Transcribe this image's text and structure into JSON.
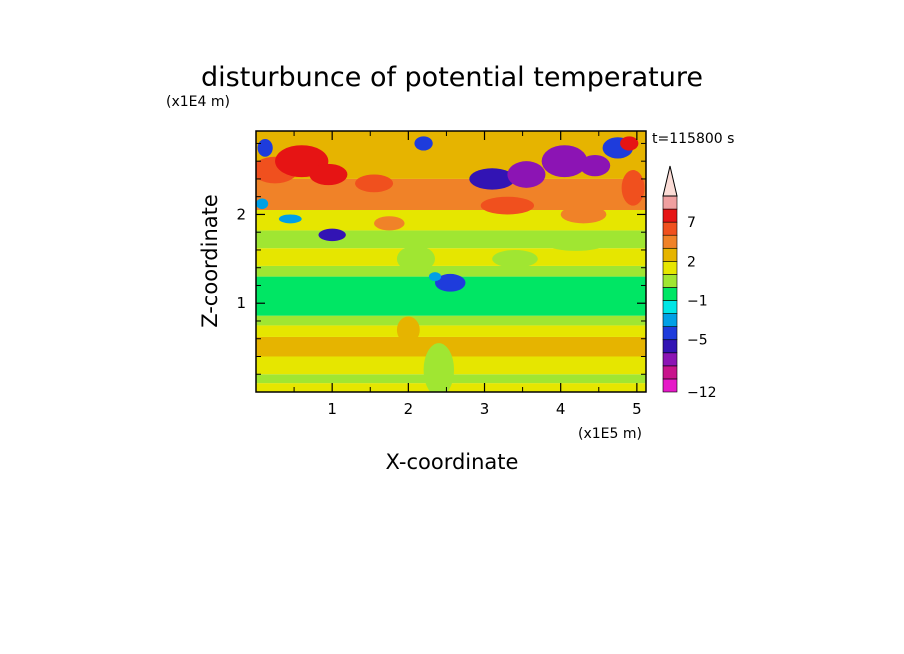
{
  "chart_data": {
    "type": "heatmap",
    "title": "disturbunce of potential temperature",
    "xlabel": "X-coordinate",
    "ylabel": "Z-coordinate",
    "x_unit": "(x1E5 m)",
    "y_unit": "(x1E4 m)",
    "time_label": "t=115800 s",
    "xlim": [
      0,
      5.12
    ],
    "ylim": [
      0,
      2.94
    ],
    "x_ticks": [
      1,
      2,
      3,
      4,
      5
    ],
    "y_ticks": [
      1,
      2
    ],
    "x_tick_labels": [
      "1",
      "2",
      "3",
      "4",
      "5"
    ],
    "y_tick_labels": [
      "1",
      "2"
    ],
    "colorbar": {
      "levels": [
        -12,
        -10,
        -8,
        -6.5,
        -5,
        -3.5,
        -2,
        -1,
        0,
        1,
        2,
        3.5,
        5,
        7,
        8.5,
        10
      ],
      "labeled_levels": [
        -12,
        -5,
        -1,
        2,
        7
      ],
      "labels": [
        "-12",
        "-5",
        "-1",
        "2",
        "7"
      ],
      "colors": [
        "#e619c8",
        "#c8148c",
        "#8c14b4",
        "#3214b4",
        "#1e3cdc",
        "#00a0e6",
        "#00e6e6",
        "#00e664",
        "#a0e632",
        "#e6e600",
        "#e6b400",
        "#f08228",
        "#f0501e",
        "#e61414",
        "#f0a0a0"
      ],
      "extend_top_color": "#fbdcd6"
    },
    "bands": [
      {
        "z": [
          0.0,
          0.1
        ],
        "value": 1.5
      },
      {
        "z": [
          0.1,
          0.2
        ],
        "value": 0.5
      },
      {
        "z": [
          0.2,
          0.4
        ],
        "value": 1.5
      },
      {
        "z": [
          0.4,
          0.62
        ],
        "value": 2.5
      },
      {
        "z": [
          0.62,
          0.75
        ],
        "value": 1.5
      },
      {
        "z": [
          0.75,
          0.86
        ],
        "value": 0.5
      },
      {
        "z": [
          0.86,
          1.3
        ],
        "value": -0.5
      },
      {
        "z": [
          1.3,
          1.42
        ],
        "value": 0.5
      },
      {
        "z": [
          1.42,
          1.62
        ],
        "value": 1.5
      },
      {
        "z": [
          1.62,
          1.82
        ],
        "value": 0.5
      },
      {
        "z": [
          1.82,
          2.05
        ],
        "value": 1.5
      },
      {
        "z": [
          2.05,
          2.4
        ],
        "value": 4.0
      },
      {
        "z": [
          2.4,
          2.94
        ],
        "value": 2.5
      }
    ],
    "features": [
      {
        "x": 0.25,
        "z": 2.5,
        "rx": 0.3,
        "rz": 0.15,
        "value": 6.0
      },
      {
        "x": 0.6,
        "z": 2.6,
        "rx": 0.35,
        "rz": 0.18,
        "value": 8.0
      },
      {
        "x": 0.95,
        "z": 2.45,
        "rx": 0.25,
        "rz": 0.12,
        "value": 7.0
      },
      {
        "x": 1.55,
        "z": 2.35,
        "rx": 0.25,
        "rz": 0.1,
        "value": 6.0
      },
      {
        "x": 0.12,
        "z": 2.75,
        "rx": 0.1,
        "rz": 0.1,
        "value": -5.0
      },
      {
        "x": 0.08,
        "z": 2.12,
        "rx": 0.08,
        "rz": 0.06,
        "value": -3.5
      },
      {
        "x": 0.45,
        "z": 1.95,
        "rx": 0.15,
        "rz": 0.05,
        "value": -3.5
      },
      {
        "x": 1.0,
        "z": 1.77,
        "rx": 0.18,
        "rz": 0.07,
        "value": -6.0
      },
      {
        "x": 2.2,
        "z": 2.8,
        "rx": 0.12,
        "rz": 0.08,
        "value": -5.0
      },
      {
        "x": 3.1,
        "z": 2.4,
        "rx": 0.3,
        "rz": 0.12,
        "value": -6.0
      },
      {
        "x": 3.55,
        "z": 2.45,
        "rx": 0.25,
        "rz": 0.15,
        "value": -8.0
      },
      {
        "x": 4.05,
        "z": 2.6,
        "rx": 0.3,
        "rz": 0.18,
        "value": -7.0
      },
      {
        "x": 4.45,
        "z": 2.55,
        "rx": 0.2,
        "rz": 0.12,
        "value": -8.0
      },
      {
        "x": 4.75,
        "z": 2.75,
        "rx": 0.2,
        "rz": 0.12,
        "value": -5.0
      },
      {
        "x": 3.3,
        "z": 2.1,
        "rx": 0.35,
        "rz": 0.1,
        "value": 5.0
      },
      {
        "x": 4.3,
        "z": 2.0,
        "rx": 0.3,
        "rz": 0.1,
        "value": 4.0
      },
      {
        "x": 4.95,
        "z": 2.3,
        "rx": 0.15,
        "rz": 0.2,
        "value": 6.5
      },
      {
        "x": 4.9,
        "z": 2.8,
        "rx": 0.12,
        "rz": 0.08,
        "value": 7.0
      },
      {
        "x": 2.55,
        "z": 1.23,
        "rx": 0.2,
        "rz": 0.1,
        "value": -5.0
      },
      {
        "x": 2.35,
        "z": 1.3,
        "rx": 0.08,
        "rz": 0.05,
        "value": -3.5
      },
      {
        "x": 3.4,
        "z": 1.5,
        "rx": 0.3,
        "rz": 0.1,
        "value": 0.5
      },
      {
        "x": 2.1,
        "z": 1.5,
        "rx": 0.25,
        "rz": 0.15,
        "value": 0.5
      },
      {
        "x": 2.4,
        "z": 0.25,
        "rx": 0.2,
        "rz": 0.3,
        "value": 0.5
      },
      {
        "x": 2.0,
        "z": 0.7,
        "rx": 0.15,
        "rz": 0.15,
        "value": 2.5
      },
      {
        "x": 4.2,
        "z": 1.65,
        "rx": 0.35,
        "rz": 0.06,
        "value": 0.5
      },
      {
        "x": 1.75,
        "z": 1.9,
        "rx": 0.2,
        "rz": 0.08,
        "value": 4.0
      }
    ]
  }
}
